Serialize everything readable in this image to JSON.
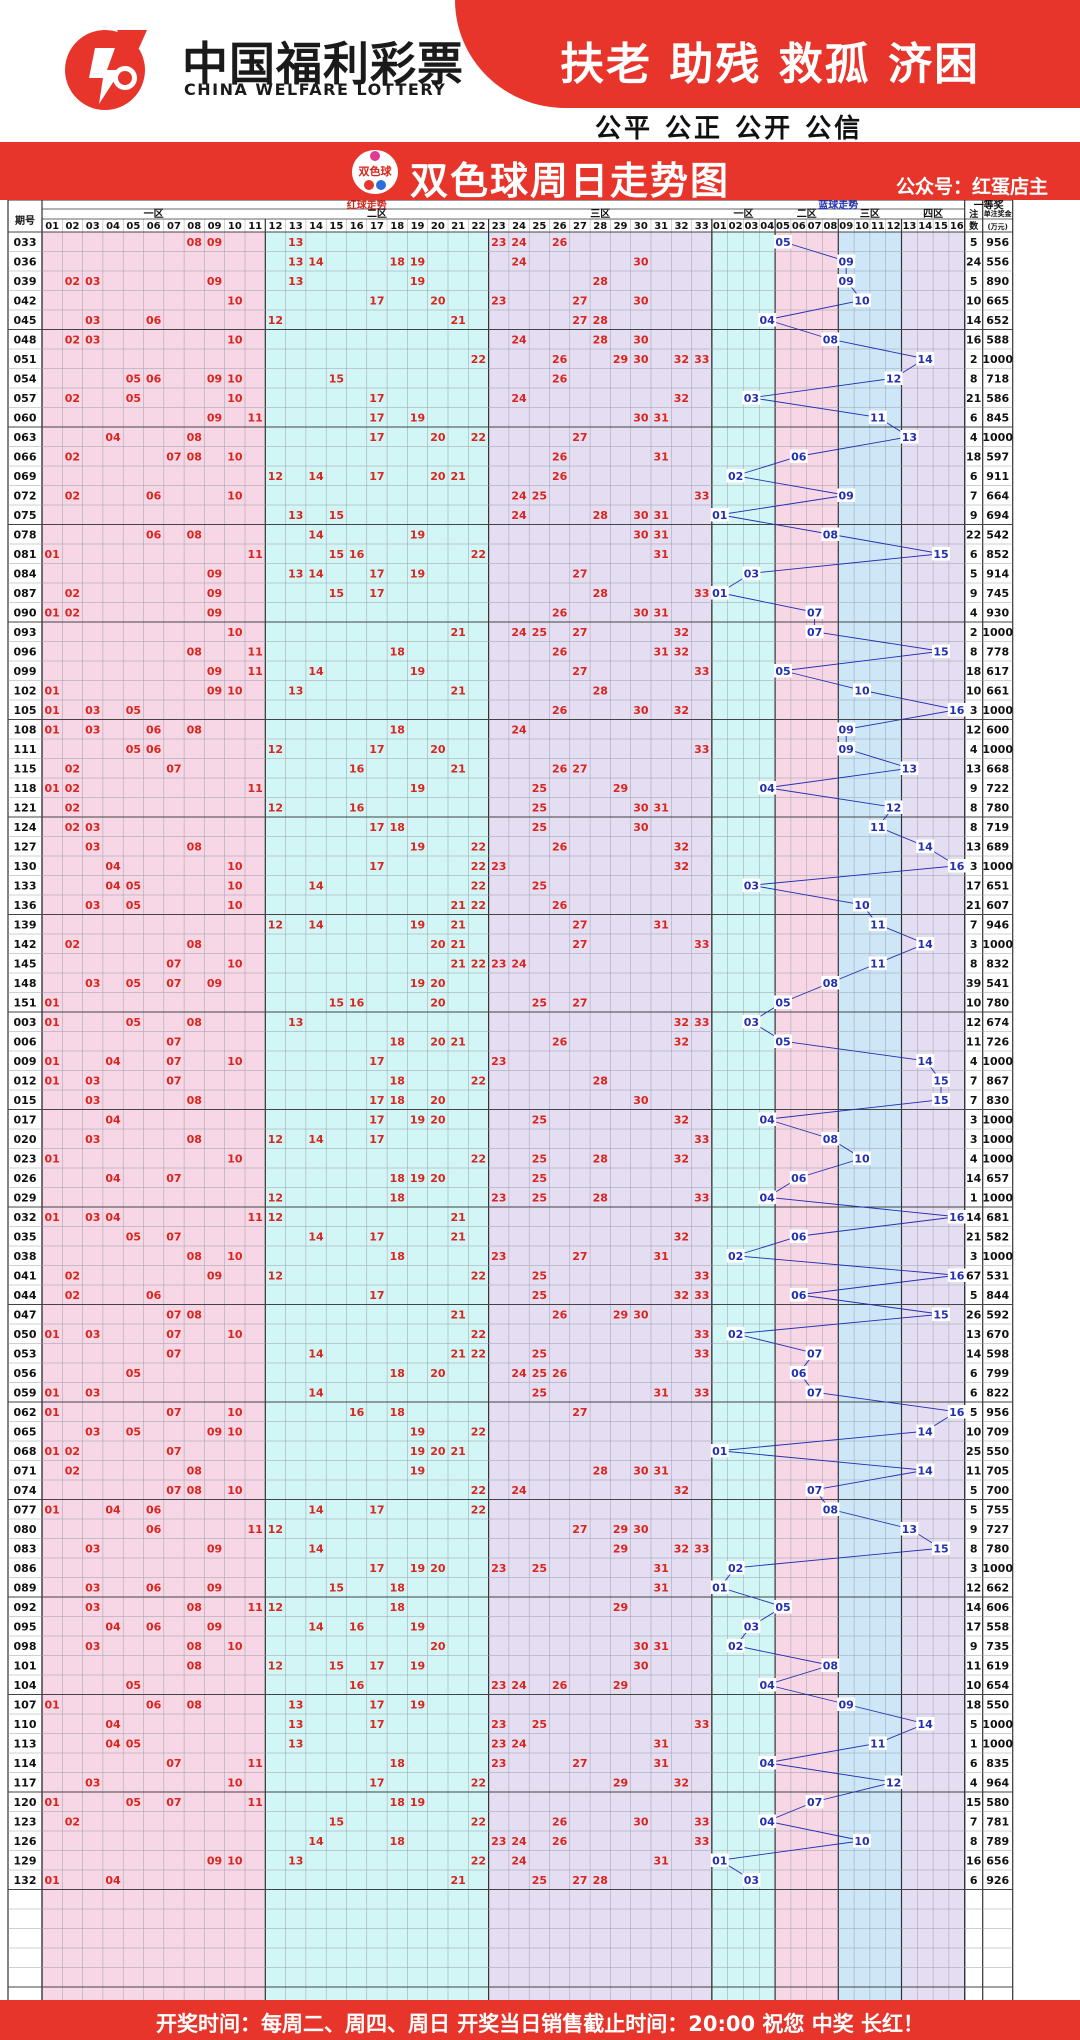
{
  "header": {
    "brand_cn": "中国福利彩票",
    "brand_en": "CHINA WELFARE LOTTERY",
    "slogan": "扶老 助残 救孤 济困",
    "principles": "公平 公正 公开 公信",
    "title": "双色球周日走势图",
    "badge_text": "双色球",
    "account": "公众号：红蛋店主",
    "logo_mark": "cwl-logo-icon"
  },
  "colors": {
    "brand_red": "#e8352b",
    "red_ball": "#d9251c",
    "blue_ball": "#2130b0",
    "zone_pink": "#f7d6e6",
    "zone_cyan": "#d2f5f6",
    "zone_lavender": "#e5ddf2",
    "zone_blue": "#cde7f8"
  },
  "table": {
    "col_issue": "期号",
    "red_section": "红球走势",
    "blue_section": "蓝球走势",
    "first_prize": "一等奖",
    "count_label": "注数",
    "amount_label": "单注奖金(万元)",
    "red_zones": [
      "一区",
      "二区",
      "三区"
    ],
    "blue_zones": [
      "一区",
      "二区",
      "三区",
      "四区"
    ]
  },
  "draws": [
    {
      "i": "033",
      "r": [
        8,
        9,
        13,
        23,
        24,
        26
      ],
      "b": 5,
      "n": "5",
      "a": "956"
    },
    {
      "i": "036",
      "r": [
        13,
        14,
        18,
        19,
        24,
        30
      ],
      "b": 9,
      "n": "24",
      "a": "556"
    },
    {
      "i": "039",
      "r": [
        2,
        3,
        9,
        13,
        19,
        28
      ],
      "b": 9,
      "n": "5",
      "a": "890"
    },
    {
      "i": "042",
      "r": [
        10,
        17,
        20,
        23,
        27,
        30
      ],
      "b": 10,
      "n": "10",
      "a": "665"
    },
    {
      "i": "045",
      "r": [
        3,
        6,
        12,
        21,
        27,
        28
      ],
      "b": 4,
      "n": "14",
      "a": "652"
    },
    {
      "i": "048",
      "r": [
        2,
        3,
        10,
        24,
        28,
        30
      ],
      "b": 8,
      "n": "16",
      "a": "588"
    },
    {
      "i": "051",
      "r": [
        22,
        26,
        29,
        30,
        32,
        33
      ],
      "b": 14,
      "n": "2",
      "a": "1000"
    },
    {
      "i": "054",
      "r": [
        5,
        6,
        9,
        10,
        15,
        26
      ],
      "b": 12,
      "n": "8",
      "a": "718"
    },
    {
      "i": "057",
      "r": [
        2,
        5,
        10,
        17,
        24,
        32
      ],
      "b": 3,
      "n": "21",
      "a": "586"
    },
    {
      "i": "060",
      "r": [
        9,
        11,
        17,
        19,
        30,
        31
      ],
      "b": 11,
      "n": "6",
      "a": "845"
    },
    {
      "i": "063",
      "r": [
        4,
        8,
        17,
        20,
        22,
        27
      ],
      "b": 13,
      "n": "4",
      "a": "1000"
    },
    {
      "i": "066",
      "r": [
        2,
        7,
        8,
        10,
        26,
        31
      ],
      "b": 6,
      "n": "18",
      "a": "597"
    },
    {
      "i": "069",
      "r": [
        12,
        14,
        17,
        20,
        21,
        26
      ],
      "b": 2,
      "n": "6",
      "a": "911"
    },
    {
      "i": "072",
      "r": [
        2,
        6,
        10,
        24,
        25,
        33
      ],
      "b": 9,
      "n": "7",
      "a": "664"
    },
    {
      "i": "075",
      "r": [
        13,
        15,
        24,
        28,
        30,
        31
      ],
      "b": 1,
      "n": "9",
      "a": "694"
    },
    {
      "i": "078",
      "r": [
        6,
        8,
        14,
        19,
        30,
        31
      ],
      "b": 8,
      "n": "22",
      "a": "542"
    },
    {
      "i": "081",
      "r": [
        1,
        11,
        15,
        16,
        22,
        31
      ],
      "b": 15,
      "n": "6",
      "a": "852"
    },
    {
      "i": "084",
      "r": [
        9,
        13,
        14,
        17,
        19,
        27
      ],
      "b": 3,
      "n": "5",
      "a": "914"
    },
    {
      "i": "087",
      "r": [
        2,
        9,
        15,
        17,
        28,
        33
      ],
      "b": 1,
      "n": "9",
      "a": "745"
    },
    {
      "i": "090",
      "r": [
        1,
        2,
        9,
        26,
        30,
        31
      ],
      "b": 7,
      "n": "4",
      "a": "930"
    },
    {
      "i": "093",
      "r": [
        10,
        21,
        24,
        25,
        27,
        32
      ],
      "b": 7,
      "n": "2",
      "a": "1000"
    },
    {
      "i": "096",
      "r": [
        8,
        11,
        18,
        26,
        31,
        32
      ],
      "b": 15,
      "n": "8",
      "a": "778"
    },
    {
      "i": "099",
      "r": [
        9,
        11,
        14,
        19,
        27,
        33
      ],
      "b": 5,
      "n": "18",
      "a": "617"
    },
    {
      "i": "102",
      "r": [
        1,
        9,
        10,
        13,
        21,
        28
      ],
      "b": 10,
      "n": "10",
      "a": "661"
    },
    {
      "i": "105",
      "r": [
        1,
        3,
        5,
        26,
        30,
        32
      ],
      "b": 16,
      "n": "3",
      "a": "1000"
    },
    {
      "i": "108",
      "r": [
        1,
        3,
        6,
        8,
        18,
        24
      ],
      "b": 9,
      "n": "12",
      "a": "600"
    },
    {
      "i": "111",
      "r": [
        5,
        6,
        12,
        17,
        20,
        33
      ],
      "b": 9,
      "n": "4",
      "a": "1000"
    },
    {
      "i": "115",
      "r": [
        2,
        7,
        16,
        21,
        26,
        27
      ],
      "b": 13,
      "n": "13",
      "a": "668"
    },
    {
      "i": "118",
      "r": [
        1,
        2,
        11,
        19,
        25,
        29
      ],
      "b": 4,
      "n": "9",
      "a": "722"
    },
    {
      "i": "121",
      "r": [
        2,
        12,
        16,
        25,
        30,
        31
      ],
      "b": 12,
      "n": "8",
      "a": "780"
    },
    {
      "i": "124",
      "r": [
        2,
        3,
        17,
        18,
        25,
        30
      ],
      "b": 11,
      "n": "8",
      "a": "719"
    },
    {
      "i": "127",
      "r": [
        3,
        8,
        19,
        22,
        26,
        32
      ],
      "b": 14,
      "n": "13",
      "a": "689"
    },
    {
      "i": "130",
      "r": [
        4,
        10,
        17,
        22,
        23,
        32
      ],
      "b": 16,
      "n": "3",
      "a": "1000"
    },
    {
      "i": "133",
      "r": [
        4,
        5,
        10,
        14,
        22,
        25
      ],
      "b": 3,
      "n": "17",
      "a": "651"
    },
    {
      "i": "136",
      "r": [
        3,
        5,
        10,
        21,
        22,
        26
      ],
      "b": 10,
      "n": "21",
      "a": "607"
    },
    {
      "i": "139",
      "r": [
        12,
        14,
        19,
        21,
        27,
        31
      ],
      "b": 11,
      "n": "7",
      "a": "946"
    },
    {
      "i": "142",
      "r": [
        2,
        8,
        20,
        21,
        27,
        33
      ],
      "b": 14,
      "n": "3",
      "a": "1000"
    },
    {
      "i": "145",
      "r": [
        7,
        10,
        21,
        22,
        23,
        24
      ],
      "b": 11,
      "n": "8",
      "a": "832"
    },
    {
      "i": "148",
      "r": [
        3,
        5,
        7,
        9,
        19,
        20
      ],
      "b": 8,
      "n": "39",
      "a": "541"
    },
    {
      "i": "151",
      "r": [
        1,
        15,
        16,
        20,
        25,
        27
      ],
      "b": 5,
      "n": "10",
      "a": "780"
    },
    {
      "i": "003",
      "r": [
        1,
        5,
        8,
        13,
        32,
        33
      ],
      "b": 3,
      "n": "12",
      "a": "674"
    },
    {
      "i": "006",
      "r": [
        7,
        18,
        20,
        21,
        26,
        32
      ],
      "b": 5,
      "n": "11",
      "a": "726"
    },
    {
      "i": "009",
      "r": [
        1,
        4,
        7,
        10,
        17,
        23
      ],
      "b": 14,
      "n": "4",
      "a": "1000"
    },
    {
      "i": "012",
      "r": [
        1,
        3,
        7,
        18,
        22,
        28
      ],
      "b": 15,
      "n": "7",
      "a": "867"
    },
    {
      "i": "015",
      "r": [
        3,
        8,
        17,
        18,
        20,
        30
      ],
      "b": 15,
      "n": "7",
      "a": "830"
    },
    {
      "i": "017",
      "r": [
        4,
        17,
        19,
        20,
        25,
        32
      ],
      "b": 4,
      "n": "3",
      "a": "1000"
    },
    {
      "i": "020",
      "r": [
        3,
        8,
        12,
        14,
        17,
        33
      ],
      "b": 8,
      "n": "3",
      "a": "1000"
    },
    {
      "i": "023",
      "r": [
        1,
        10,
        22,
        25,
        28,
        32
      ],
      "b": 10,
      "n": "4",
      "a": "1000"
    },
    {
      "i": "026",
      "r": [
        4,
        7,
        18,
        19,
        20,
        25
      ],
      "b": 6,
      "n": "14",
      "a": "657"
    },
    {
      "i": "029",
      "r": [
        12,
        18,
        23,
        25,
        28,
        33
      ],
      "b": 4,
      "n": "1",
      "a": "1000"
    },
    {
      "i": "032",
      "r": [
        1,
        3,
        4,
        11,
        12,
        21
      ],
      "b": 16,
      "n": "14",
      "a": "681"
    },
    {
      "i": "035",
      "r": [
        5,
        7,
        14,
        17,
        21,
        32
      ],
      "b": 6,
      "n": "21",
      "a": "582"
    },
    {
      "i": "038",
      "r": [
        8,
        10,
        18,
        23,
        27,
        31
      ],
      "b": 2,
      "n": "3",
      "a": "1000"
    },
    {
      "i": "041",
      "r": [
        2,
        9,
        12,
        22,
        25,
        33
      ],
      "b": 16,
      "n": "67",
      "a": "531"
    },
    {
      "i": "044",
      "r": [
        2,
        6,
        17,
        25,
        32,
        33
      ],
      "b": 6,
      "n": "5",
      "a": "844"
    },
    {
      "i": "047",
      "r": [
        7,
        8,
        21,
        26,
        29,
        30
      ],
      "b": 15,
      "n": "26",
      "a": "592"
    },
    {
      "i": "050",
      "r": [
        1,
        3,
        7,
        10,
        22,
        33
      ],
      "b": 2,
      "n": "13",
      "a": "670"
    },
    {
      "i": "053",
      "r": [
        7,
        14,
        21,
        22,
        25,
        33
      ],
      "b": 7,
      "n": "14",
      "a": "598"
    },
    {
      "i": "056",
      "r": [
        5,
        18,
        20,
        24,
        25,
        26
      ],
      "b": 6,
      "n": "6",
      "a": "799"
    },
    {
      "i": "059",
      "r": [
        1,
        3,
        14,
        25,
        31,
        33
      ],
      "b": 7,
      "n": "6",
      "a": "822"
    },
    {
      "i": "062",
      "r": [
        1,
        7,
        10,
        16,
        18,
        27
      ],
      "b": 16,
      "n": "5",
      "a": "956"
    },
    {
      "i": "065",
      "r": [
        3,
        5,
        9,
        10,
        19,
        22
      ],
      "b": 14,
      "n": "10",
      "a": "709"
    },
    {
      "i": "068",
      "r": [
        1,
        2,
        7,
        19,
        20,
        21
      ],
      "b": 1,
      "n": "25",
      "a": "550"
    },
    {
      "i": "071",
      "r": [
        2,
        8,
        19,
        28,
        30,
        31
      ],
      "b": 14,
      "n": "11",
      "a": "705"
    },
    {
      "i": "074",
      "r": [
        7,
        8,
        10,
        22,
        24,
        32
      ],
      "b": 7,
      "n": "5",
      "a": "700"
    },
    {
      "i": "077",
      "r": [
        1,
        4,
        6,
        14,
        17,
        22
      ],
      "b": 8,
      "n": "5",
      "a": "755"
    },
    {
      "i": "080",
      "r": [
        6,
        11,
        12,
        27,
        29,
        30
      ],
      "b": 13,
      "n": "9",
      "a": "727"
    },
    {
      "i": "083",
      "r": [
        3,
        9,
        14,
        29,
        32,
        33
      ],
      "b": 15,
      "n": "8",
      "a": "780"
    },
    {
      "i": "086",
      "r": [
        17,
        19,
        20,
        23,
        25,
        31
      ],
      "b": 2,
      "n": "3",
      "a": "1000"
    },
    {
      "i": "089",
      "r": [
        3,
        6,
        9,
        15,
        18,
        31
      ],
      "b": 1,
      "n": "12",
      "a": "662"
    },
    {
      "i": "092",
      "r": [
        3,
        8,
        11,
        12,
        18,
        29
      ],
      "b": 5,
      "n": "14",
      "a": "606"
    },
    {
      "i": "095",
      "r": [
        4,
        6,
        9,
        14,
        16,
        19
      ],
      "b": 3,
      "n": "17",
      "a": "558"
    },
    {
      "i": "098",
      "r": [
        3,
        8,
        10,
        20,
        30,
        31
      ],
      "b": 2,
      "n": "9",
      "a": "735"
    },
    {
      "i": "101",
      "r": [
        8,
        12,
        15,
        17,
        19,
        30
      ],
      "b": 8,
      "n": "11",
      "a": "619"
    },
    {
      "i": "104",
      "r": [
        5,
        16,
        23,
        24,
        26,
        29
      ],
      "b": 4,
      "n": "10",
      "a": "654"
    },
    {
      "i": "107",
      "r": [
        1,
        6,
        8,
        13,
        17,
        19
      ],
      "b": 9,
      "n": "18",
      "a": "550"
    },
    {
      "i": "110",
      "r": [
        4,
        13,
        17,
        23,
        25,
        33
      ],
      "b": 14,
      "n": "5",
      "a": "1000"
    },
    {
      "i": "113",
      "r": [
        4,
        5,
        13,
        23,
        24,
        31
      ],
      "b": 11,
      "n": "1",
      "a": "1000"
    },
    {
      "i": "114",
      "r": [
        7,
        11,
        18,
        23,
        27,
        31
      ],
      "b": 4,
      "n": "6",
      "a": "835"
    },
    {
      "i": "117",
      "r": [
        3,
        10,
        17,
        22,
        29,
        32
      ],
      "b": 12,
      "n": "4",
      "a": "964"
    },
    {
      "i": "120",
      "r": [
        1,
        5,
        7,
        11,
        18,
        19
      ],
      "b": 7,
      "n": "15",
      "a": "580"
    },
    {
      "i": "123",
      "r": [
        2,
        15,
        22,
        26,
        30,
        33
      ],
      "b": 4,
      "n": "7",
      "a": "781"
    },
    {
      "i": "126",
      "r": [
        14,
        18,
        23,
        24,
        26,
        33
      ],
      "b": 10,
      "n": "8",
      "a": "789"
    },
    {
      "i": "129",
      "r": [
        9,
        10,
        13,
        22,
        24,
        31
      ],
      "b": 1,
      "n": "16",
      "a": "656"
    },
    {
      "i": "132",
      "r": [
        1,
        4,
        21,
        25,
        27,
        28
      ],
      "b": 3,
      "n": "6",
      "a": "926"
    }
  ],
  "footer": {
    "text": "开奖时间：每周二、周四、周日  开奖当日销售截止时间：20:00  祝您 中奖 长红！"
  }
}
